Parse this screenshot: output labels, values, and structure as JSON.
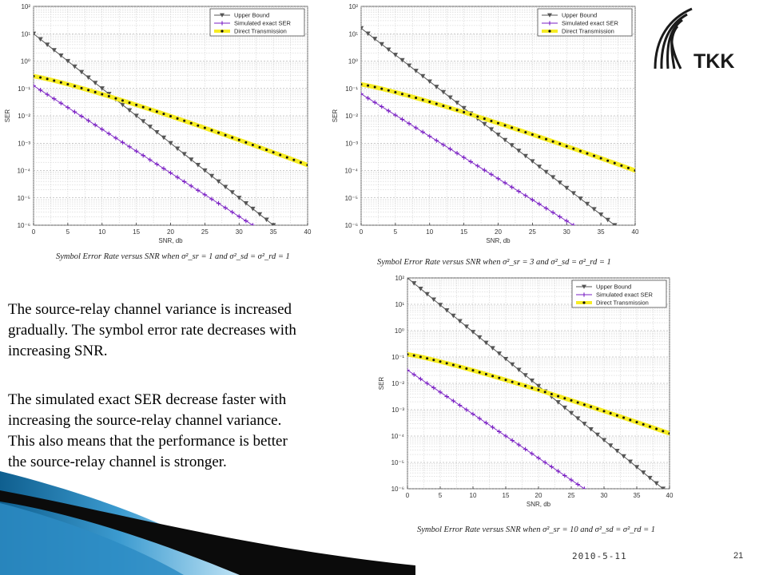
{
  "slide": {
    "paragraphs": [
      [
        "The source-relay channel variance is increased",
        "gradually. The symbol error rate decreases with",
        "increasing SNR."
      ],
      [
        "The simulated exact SER decrease faster with",
        "increasing the source-relay channel variance.",
        "This also means that the performance is better",
        "the source-relay channel  is stronger."
      ]
    ],
    "footer_date": "2010-5-11",
    "page_number": "21",
    "logo_text": "TKK",
    "colors": {
      "upper": "#555555",
      "simulated": "#7a1fc4",
      "direct_fill": "#f6ec23",
      "direct_dot": "#111111",
      "grid": "#c8c8c8",
      "swoosh": "#1b75a8"
    }
  },
  "chart_data": [
    {
      "type": "line",
      "caption": "Symbol Error Rate versus SNR when σ²_sr = 1 and σ²_sd = σ²_rd = 1",
      "xlabel": "SNR, db",
      "ylabel": "SER",
      "y_scale": "log",
      "xlim": [
        0,
        40
      ],
      "ylim": [
        1e-06,
        100
      ],
      "x_ticks": [
        0,
        5,
        10,
        15,
        20,
        25,
        30,
        35,
        40
      ],
      "y_tick_labels": [
        "10²",
        "10¹",
        "10⁰",
        "10⁻¹",
        "10⁻²",
        "10⁻³",
        "10⁻⁴",
        "10⁻⁵",
        "10⁻⁶"
      ],
      "y_tick_exps": [
        2,
        1,
        0,
        -1,
        -2,
        -3,
        -4,
        -5,
        -6
      ],
      "legend": [
        "Upper Bound",
        "Simulated exact SER",
        "Direct Transmission"
      ],
      "series": [
        {
          "name": "Upper Bound",
          "x0": 0,
          "step": 1,
          "x1": 35,
          "y_log_start": 1.0,
          "y_log_end": -6.0
        },
        {
          "name": "Simulated exact SER",
          "x0": 0,
          "step": 1,
          "x1": 32,
          "y_log_start": -0.9,
          "y_log_end": -6.0
        },
        {
          "name": "Direct Transmission",
          "x0": 0,
          "step": 1,
          "x1": 40,
          "y_log_start": -0.55,
          "y_log_end": -3.8
        }
      ]
    },
    {
      "type": "line",
      "caption": "Symbol Error Rate versus SNR when σ²_sr = 3 and σ²_sd = σ²_rd = 1",
      "xlabel": "SNR, db",
      "ylabel": "SER",
      "y_scale": "log",
      "xlim": [
        0,
        40
      ],
      "ylim": [
        1e-06,
        100
      ],
      "x_ticks": [
        0,
        5,
        10,
        15,
        20,
        25,
        30,
        35,
        40
      ],
      "y_tick_labels": [
        "10²",
        "10¹",
        "10⁰",
        "10⁻¹",
        "10⁻²",
        "10⁻³",
        "10⁻⁴",
        "10⁻⁵",
        "10⁻⁶"
      ],
      "y_tick_exps": [
        2,
        1,
        0,
        -1,
        -2,
        -3,
        -4,
        -5,
        -6
      ],
      "legend": [
        "Upper Bound",
        "Simulated exact SER",
        "Direct Transmission"
      ],
      "series": [
        {
          "name": "Upper Bound",
          "x0": 0,
          "step": 1,
          "x1": 37,
          "y_log_start": 1.2,
          "y_log_end": -6.0
        },
        {
          "name": "Simulated exact SER",
          "x0": 0,
          "step": 1,
          "x1": 31,
          "y_log_start": -1.2,
          "y_log_end": -6.0
        },
        {
          "name": "Direct Transmission",
          "x0": 0,
          "step": 1,
          "x1": 40,
          "y_log_start": -0.85,
          "y_log_end": -4.0
        }
      ]
    },
    {
      "type": "line",
      "caption": "Symbol Error Rate versus SNR when σ²_sr = 10 and σ²_sd = σ²_rd = 1",
      "xlabel": "SNR, db",
      "ylabel": "SER",
      "y_scale": "log",
      "xlim": [
        0,
        40
      ],
      "ylim": [
        1e-06,
        100
      ],
      "x_ticks": [
        0,
        5,
        10,
        15,
        20,
        25,
        30,
        35,
        40
      ],
      "y_tick_labels": [
        "10²",
        "10¹",
        "10⁰",
        "10⁻¹",
        "10⁻²",
        "10⁻³",
        "10⁻⁴",
        "10⁻⁵",
        "10⁻⁶"
      ],
      "y_tick_exps": [
        2,
        1,
        0,
        -1,
        -2,
        -3,
        -4,
        -5,
        -6
      ],
      "legend": [
        "Upper Bound",
        "Simulated exact SER",
        "Direct Transmission"
      ],
      "series": [
        {
          "name": "Upper Bound",
          "x0": 0,
          "step": 1,
          "x1": 39,
          "y_log_start": 2.0,
          "y_log_end": -6.0
        },
        {
          "name": "Simulated exact SER",
          "x0": 0,
          "step": 1,
          "x1": 27,
          "y_log_start": -1.5,
          "y_log_end": -6.0
        },
        {
          "name": "Direct Transmission",
          "x0": 0,
          "step": 1,
          "x1": 40,
          "y_log_start": -0.9,
          "y_log_end": -3.9
        }
      ]
    }
  ]
}
